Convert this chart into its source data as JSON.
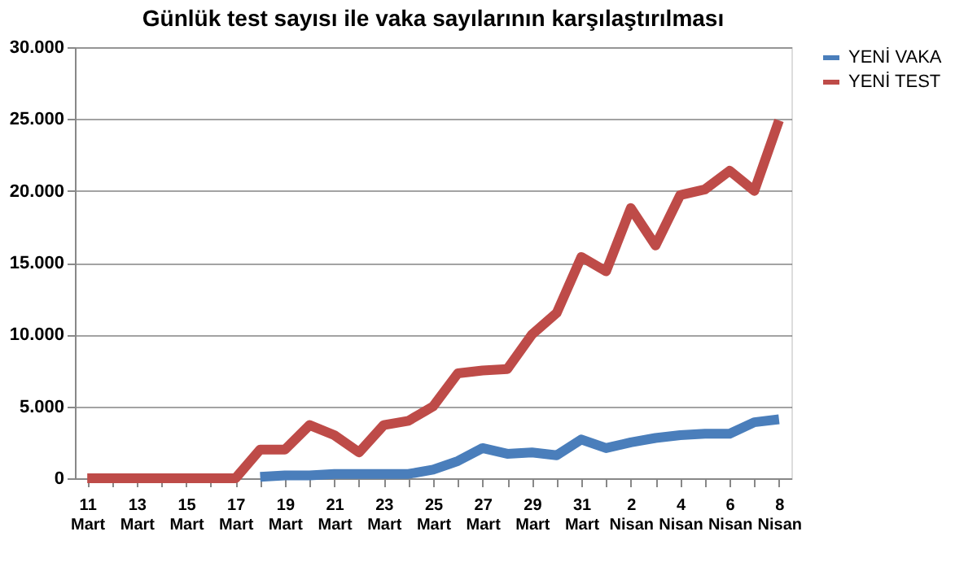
{
  "chart_data": {
    "type": "line",
    "title": "Günlük test sayısı ile vaka sayılarının karşılaştırılması",
    "categories": [
      "11 Mart",
      null,
      "13 Mart",
      null,
      "15 Mart",
      null,
      "17 Mart",
      null,
      "19 Mart",
      null,
      "21 Mart",
      null,
      "23 Mart",
      null,
      "25 Mart",
      null,
      "27 Mart",
      null,
      "29 Mart",
      null,
      "31 Mart",
      null,
      "2 Nisan",
      null,
      "4 Nisan",
      null,
      "6 Nisan",
      null,
      "8 Nisan"
    ],
    "series": [
      {
        "name": "YENİ VAKA",
        "color": "#4a7ebb",
        "values": [
          null,
          null,
          null,
          null,
          null,
          null,
          null,
          100,
          200,
          200,
          300,
          300,
          300,
          300,
          600,
          1200,
          2100,
          1700,
          1800,
          1600,
          2700,
          2100,
          2500,
          2800,
          3000,
          3100,
          3100,
          3900,
          4100
        ]
      },
      {
        "name": "YENİ TEST",
        "color": "#be4b48",
        "values": [
          0,
          0,
          0,
          0,
          0,
          0,
          0,
          2000,
          2000,
          3700,
          3000,
          1800,
          3700,
          4000,
          5000,
          7300,
          7500,
          7600,
          10000,
          11500,
          15400,
          14400,
          18800,
          16200,
          19700,
          20100,
          21400,
          20000,
          24900
        ]
      }
    ],
    "ylim": [
      0,
      30000
    ],
    "yticks": [
      0,
      {
        "value": 5000,
        "label": "5.000"
      },
      {
        "value": 10000,
        "label": "10.000"
      },
      {
        "value": 15000,
        "label": "15.000"
      },
      {
        "value": 20000,
        "label": "20.000"
      },
      {
        "value": 25000,
        "label": "25.000"
      },
      {
        "value": 30000,
        "label": "30.000"
      }
    ],
    "grid": "y",
    "legend": "right",
    "marker": "none",
    "line_style": "solid"
  }
}
